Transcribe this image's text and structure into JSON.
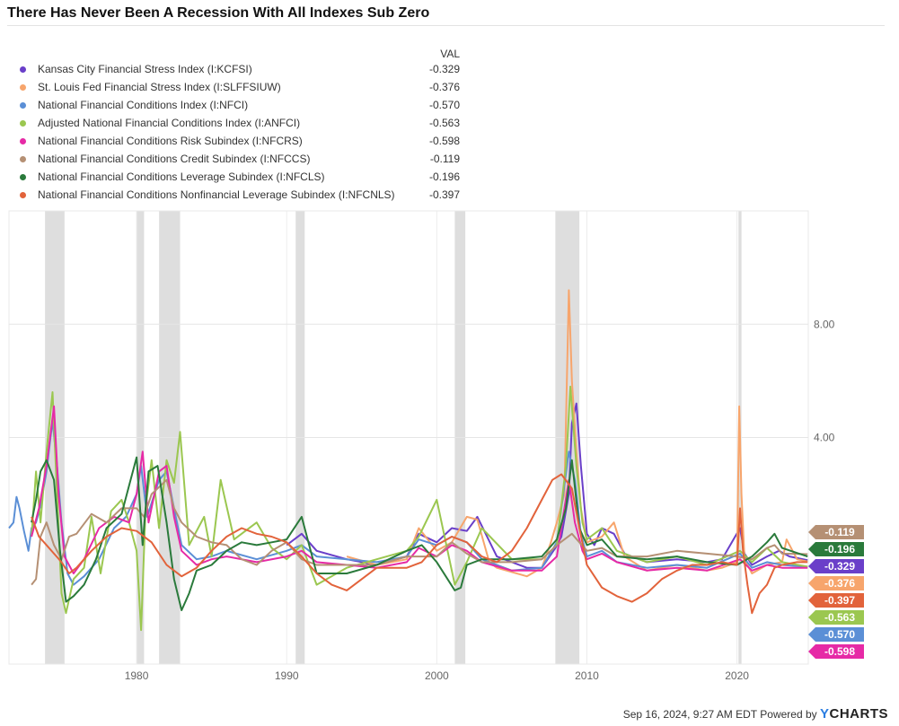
{
  "title": "There Has Never Been A Recession With All Indexes Sub Zero",
  "legend_header": "VAL",
  "footer": {
    "timestamp": "Sep 16, 2024, 9:27 AM EDT",
    "powered_by": "Powered by",
    "brand_y": "Y",
    "brand_rest": "CHARTS"
  },
  "chart_data": {
    "type": "line",
    "title": "There Has Never Been A Recession With All Indexes Sub Zero",
    "xlabel": "",
    "ylabel": "",
    "xlim": [
      1971.5,
      2024.75
    ],
    "ylim": [
      -4.0,
      12.0
    ],
    "x_ticks": [
      1980,
      1990,
      2000,
      2010,
      2020
    ],
    "x_tick_labels": [
      "1980",
      "1990",
      "2000",
      "2010",
      "2020"
    ],
    "y_ticks": [
      4,
      8
    ],
    "y_tick_labels": [
      "4.00",
      "8.00"
    ],
    "grid": true,
    "legend_position": "top-left",
    "recessions": [
      [
        1973.9,
        1975.2
      ],
      [
        1980.0,
        1980.5
      ],
      [
        1981.5,
        1982.9
      ],
      [
        1990.6,
        1991.2
      ],
      [
        2001.2,
        2001.9
      ],
      [
        2007.9,
        2009.5
      ],
      [
        2020.1,
        2020.3
      ]
    ],
    "series": [
      {
        "name": "Kansas City Financial Stress Index (I:KCFSI)",
        "value_label": "-0.329",
        "last": -0.329,
        "color": "#6a3fc9",
        "x": [
          1990.0,
          1991.0,
          1992.0,
          1994.0,
          1996.0,
          1998.0,
          1998.8,
          2000.0,
          2001.0,
          2002.0,
          2002.7,
          2004.0,
          2006.0,
          2007.0,
          2007.9,
          2008.3,
          2008.8,
          2009.0,
          2009.3,
          2009.6,
          2010.0,
          2010.5,
          2011.0,
          2011.8,
          2012.5,
          2014.0,
          2016.0,
          2018.0,
          2019.0,
          2020.2,
          2020.5,
          2021.0,
          2022.0,
          2022.8,
          2023.5,
          2024.7
        ],
        "y": [
          0.2,
          0.6,
          0.0,
          -0.3,
          -0.5,
          -0.2,
          0.6,
          0.3,
          0.8,
          0.7,
          1.2,
          -0.2,
          -0.6,
          -0.6,
          0.1,
          0.5,
          2.0,
          4.5,
          5.2,
          3.0,
          0.6,
          0.2,
          0.8,
          0.6,
          -0.1,
          -0.4,
          -0.3,
          -0.4,
          -0.3,
          0.8,
          -0.1,
          -0.5,
          -0.2,
          0.0,
          -0.2,
          -0.33
        ]
      },
      {
        "name": "St. Louis Fed Financial Stress Index (I:SLFFSIUW)",
        "value_label": "-0.376",
        "last": -0.376,
        "color": "#f7a56c",
        "x": [
          1994.0,
          1996.0,
          1998.0,
          1998.8,
          2000.0,
          2001.0,
          2002.0,
          2002.7,
          2003.5,
          2004.0,
          2006.0,
          2007.0,
          2007.6,
          2008.0,
          2008.5,
          2008.8,
          2009.0,
          2009.3,
          2009.6,
          2010.0,
          2011.0,
          2011.8,
          2012.5,
          2014.0,
          2016.0,
          2018.0,
          2019.0,
          2020.0,
          2020.15,
          2020.3,
          2020.5,
          2021.0,
          2022.0,
          2023.0,
          2023.3,
          2024.0,
          2024.7
        ],
        "y": [
          -0.2,
          -0.5,
          -0.3,
          0.8,
          0.0,
          0.3,
          1.2,
          1.1,
          -0.4,
          -0.6,
          -0.9,
          -0.6,
          0.3,
          1.0,
          2.0,
          9.2,
          6.0,
          3.5,
          1.5,
          0.3,
          0.5,
          1.0,
          -0.2,
          -0.7,
          -0.5,
          -0.7,
          -0.6,
          -0.4,
          5.1,
          2.0,
          -0.3,
          -0.8,
          -0.5,
          -0.4,
          0.4,
          -0.3,
          -0.38
        ]
      },
      {
        "name": "National Financial Conditions Index (I:NFCI)",
        "value_label": "-0.570",
        "last": -0.57,
        "color": "#5b8fd6",
        "x": [
          1971.5,
          1971.8,
          1972.0,
          1972.2,
          1972.5,
          1972.8,
          1973.0,
          1973.3,
          1973.6,
          1974.0,
          1974.4,
          1974.7,
          1975.0,
          1975.4,
          1975.8,
          1976.5,
          1977.5,
          1978.5,
          1979.3,
          1980.0,
          1980.3,
          1980.7,
          1981.5,
          1982.0,
          1982.5,
          1983.0,
          1984.0,
          1985.0,
          1986.0,
          1988.0,
          1990.0,
          1991.0,
          1992.0,
          1994.0,
          1996.0,
          1998.0,
          1998.8,
          2000.0,
          2001.0,
          2002.0,
          2003.0,
          2005.0,
          2007.0,
          2008.0,
          2008.8,
          2009.2,
          2009.6,
          2010.0,
          2011.0,
          2012.0,
          2014.0,
          2016.0,
          2018.0,
          2020.2,
          2021.0,
          2022.0,
          2023.0,
          2024.7
        ],
        "y": [
          0.8,
          1.0,
          1.9,
          1.5,
          0.7,
          0.0,
          0.8,
          1.0,
          1.6,
          2.8,
          4.6,
          3.0,
          1.0,
          -0.8,
          -1.2,
          -0.9,
          -0.3,
          0.8,
          1.2,
          2.0,
          3.0,
          1.2,
          2.5,
          2.8,
          1.5,
          0.2,
          -0.3,
          -0.2,
          0.0,
          -0.3,
          0.0,
          0.2,
          -0.2,
          -0.3,
          -0.4,
          -0.2,
          0.4,
          0.2,
          0.5,
          0.3,
          -0.3,
          -0.7,
          -0.6,
          0.3,
          3.5,
          2.5,
          0.6,
          -0.2,
          0.0,
          -0.4,
          -0.6,
          -0.5,
          -0.6,
          -0.1,
          -0.6,
          -0.4,
          -0.5,
          -0.57
        ]
      },
      {
        "name": "Adjusted National Financial Conditions Index (I:ANFCI)",
        "value_label": "-0.563",
        "last": -0.563,
        "color": "#9bc750",
        "x": [
          1973.0,
          1973.3,
          1973.6,
          1974.0,
          1974.4,
          1974.7,
          1975.0,
          1975.3,
          1975.8,
          1976.5,
          1977.0,
          1977.6,
          1978.3,
          1979.0,
          1979.5,
          1980.0,
          1980.3,
          1980.6,
          1981.0,
          1981.5,
          1982.0,
          1982.5,
          1982.9,
          1983.5,
          1984.5,
          1985.0,
          1985.6,
          1986.5,
          1988.0,
          1989.0,
          1990.0,
          1991.0,
          1992.0,
          1994.0,
          1996.0,
          1998.0,
          1998.8,
          2000.0,
          2001.2,
          2002.0,
          2003.0,
          2005.0,
          2007.0,
          2008.0,
          2008.6,
          2008.9,
          2009.3,
          2009.7,
          2010.0,
          2011.0,
          2012.0,
          2014.0,
          2016.0,
          2018.0,
          2020.2,
          2021.0,
          2022.0,
          2023.0,
          2024.7
        ],
        "y": [
          0.5,
          2.8,
          1.0,
          3.5,
          5.6,
          2.0,
          -1.5,
          -2.2,
          -1.0,
          -0.6,
          1.2,
          -0.8,
          1.4,
          1.8,
          1.0,
          0.0,
          -2.8,
          1.5,
          3.2,
          0.8,
          3.2,
          2.4,
          4.2,
          0.2,
          1.2,
          -0.2,
          2.5,
          0.4,
          1.0,
          0.1,
          -0.3,
          0.2,
          -1.2,
          -0.6,
          -0.3,
          0.0,
          0.5,
          1.8,
          -1.2,
          -0.4,
          0.8,
          -0.3,
          -0.3,
          0.2,
          3.0,
          5.8,
          3.0,
          1.0,
          0.4,
          0.8,
          0.0,
          -0.4,
          -0.2,
          -0.5,
          0.0,
          -0.4,
          0.1,
          -0.4,
          -0.56
        ]
      },
      {
        "name": "National Financial Conditions Risk Subindex (I:NFCRS)",
        "value_label": "-0.598",
        "last": -0.598,
        "color": "#e62aa6",
        "x": [
          1973.0,
          1973.5,
          1974.0,
          1974.5,
          1974.8,
          1975.2,
          1975.8,
          1976.5,
          1977.5,
          1978.5,
          1979.5,
          1980.0,
          1980.4,
          1980.8,
          1981.5,
          1982.0,
          1982.5,
          1983.0,
          1984.0,
          1985.0,
          1986.0,
          1988.0,
          1990.0,
          1991.0,
          1992.0,
          1994.0,
          1996.0,
          1998.0,
          1998.8,
          2000.0,
          2001.0,
          2002.0,
          2003.0,
          2005.0,
          2007.0,
          2008.0,
          2008.8,
          2009.2,
          2009.7,
          2010.0,
          2011.0,
          2012.0,
          2014.0,
          2016.0,
          2018.0,
          2020.2,
          2021.0,
          2022.0,
          2023.0,
          2024.7
        ],
        "y": [
          0.5,
          1.5,
          3.0,
          5.1,
          2.0,
          -0.2,
          -0.8,
          -0.3,
          0.8,
          1.2,
          1.0,
          2.0,
          3.5,
          1.0,
          2.8,
          3.0,
          1.2,
          0.0,
          -0.5,
          -0.3,
          -0.2,
          -0.4,
          -0.2,
          0.0,
          -0.4,
          -0.5,
          -0.6,
          -0.4,
          0.1,
          -0.2,
          0.2,
          0.0,
          -0.4,
          -0.7,
          -0.7,
          -0.2,
          2.5,
          1.0,
          0.0,
          -0.3,
          -0.1,
          -0.4,
          -0.7,
          -0.6,
          -0.7,
          -0.3,
          -0.7,
          -0.5,
          -0.6,
          -0.6
        ]
      },
      {
        "name": "National Financial Conditions Credit Subindex (I:NFCCS)",
        "value_label": "-0.119",
        "last": -0.119,
        "color": "#b59074",
        "x": [
          1973.0,
          1973.3,
          1973.6,
          1974.0,
          1974.5,
          1975.0,
          1975.5,
          1976.0,
          1977.0,
          1978.0,
          1979.0,
          1980.0,
          1980.5,
          1981.0,
          1982.0,
          1982.5,
          1983.0,
          1984.0,
          1985.0,
          1986.0,
          1987.0,
          1988.0,
          1989.0,
          1990.0,
          1991.0,
          1992.0,
          1994.0,
          1996.0,
          1998.0,
          2000.0,
          2001.0,
          2002.0,
          2003.0,
          2005.0,
          2007.0,
          2008.0,
          2009.0,
          2009.5,
          2010.0,
          2011.0,
          2012.0,
          2014.0,
          2016.0,
          2018.0,
          2020.0,
          2021.0,
          2022.0,
          2022.5,
          2023.0,
          2024.7
        ],
        "y": [
          -1.2,
          -1.0,
          0.5,
          1.0,
          0.2,
          -0.3,
          0.5,
          0.6,
          1.3,
          1.0,
          1.5,
          1.5,
          1.2,
          2.0,
          2.5,
          1.5,
          1.0,
          0.5,
          0.3,
          0.2,
          -0.3,
          -0.5,
          0.0,
          0.3,
          -0.3,
          -0.5,
          -0.5,
          -0.5,
          -0.2,
          -0.2,
          0.3,
          -0.1,
          -0.4,
          -0.4,
          -0.3,
          0.2,
          0.6,
          0.3,
          0.0,
          0.1,
          -0.2,
          -0.2,
          0.0,
          -0.1,
          -0.2,
          -0.3,
          0.1,
          0.2,
          -0.1,
          -0.12
        ]
      },
      {
        "name": "National Financial Conditions Leverage Subindex (I:NFCLS)",
        "value_label": "-0.196",
        "last": -0.196,
        "color": "#2a7a3b",
        "x": [
          1973.0,
          1973.3,
          1973.6,
          1974.0,
          1974.5,
          1974.9,
          1975.3,
          1975.8,
          1976.5,
          1977.3,
          1978.0,
          1979.0,
          1979.5,
          1980.0,
          1980.4,
          1980.8,
          1981.4,
          1982.0,
          1982.5,
          1983.0,
          1983.5,
          1984.0,
          1985.0,
          1986.0,
          1987.0,
          1988.0,
          1989.0,
          1990.0,
          1991.0,
          1992.0,
          1994.0,
          1996.0,
          1998.0,
          1999.0,
          2000.0,
          2001.2,
          2001.6,
          2002.0,
          2003.0,
          2005.0,
          2007.0,
          2008.0,
          2008.6,
          2009.0,
          2009.5,
          2010.0,
          2011.0,
          2012.0,
          2014.0,
          2016.0,
          2018.0,
          2020.0,
          2021.0,
          2022.0,
          2022.5,
          2023.0,
          2024.7
        ],
        "y": [
          1.0,
          1.8,
          2.8,
          3.2,
          2.5,
          0.0,
          -1.8,
          -1.6,
          -1.2,
          -0.3,
          0.8,
          1.3,
          2.3,
          3.3,
          0.2,
          2.8,
          3.0,
          1.0,
          -1.0,
          -2.1,
          -1.5,
          -0.7,
          -0.5,
          0.0,
          0.3,
          0.2,
          0.3,
          0.4,
          1.2,
          -0.8,
          -0.8,
          -0.5,
          0.0,
          0.2,
          -0.4,
          -1.4,
          -1.3,
          -0.5,
          -0.3,
          -0.3,
          -0.2,
          0.4,
          1.5,
          3.2,
          0.8,
          0.2,
          0.4,
          -0.2,
          -0.3,
          -0.2,
          -0.4,
          -0.5,
          -0.2,
          0.3,
          0.6,
          0.1,
          -0.2
        ]
      },
      {
        "name": "National Financial Conditions Nonfinancial Leverage Subindex (I:NFCNLS)",
        "value_label": "-0.397",
        "last": -0.397,
        "color": "#e2633b",
        "x": [
          1973.0,
          1973.5,
          1974.0,
          1974.5,
          1975.0,
          1975.5,
          1976.0,
          1977.0,
          1978.0,
          1979.0,
          1980.0,
          1981.0,
          1982.0,
          1983.0,
          1984.0,
          1985.0,
          1986.0,
          1987.0,
          1988.0,
          1989.0,
          1990.0,
          1991.0,
          1992.0,
          1993.0,
          1994.0,
          1996.0,
          1998.0,
          1999.0,
          2000.0,
          2001.0,
          2002.0,
          2003.0,
          2004.0,
          2005.0,
          2006.0,
          2007.0,
          2007.7,
          2008.3,
          2009.0,
          2009.5,
          2010.0,
          2011.0,
          2012.0,
          2013.0,
          2014.0,
          2015.0,
          2016.0,
          2017.0,
          2018.0,
          2019.0,
          2020.0,
          2020.2,
          2020.4,
          2020.7,
          2021.0,
          2021.5,
          2022.0,
          2022.5,
          2023.0,
          2024.0,
          2024.7
        ],
        "y": [
          1.2,
          0.5,
          0.2,
          -0.1,
          -0.4,
          -0.8,
          -0.6,
          0.0,
          0.5,
          0.8,
          0.7,
          0.3,
          -0.5,
          -0.9,
          -0.6,
          0.0,
          0.5,
          0.8,
          0.6,
          0.5,
          0.3,
          -0.2,
          -0.8,
          -1.2,
          -1.4,
          -0.6,
          -0.6,
          -0.4,
          0.2,
          0.5,
          0.3,
          -0.2,
          -0.4,
          0.0,
          0.8,
          1.8,
          2.5,
          2.7,
          2.2,
          0.8,
          -0.5,
          -1.3,
          -1.6,
          -1.8,
          -1.5,
          -1.0,
          -0.7,
          -0.5,
          -0.5,
          -0.4,
          -0.5,
          1.5,
          0.0,
          -1.2,
          -2.2,
          -1.5,
          -1.2,
          -0.6,
          -0.5,
          -0.4,
          -0.4
        ]
      }
    ],
    "value_tags": [
      {
        "label": "-0.119",
        "color": "#b59074"
      },
      {
        "label": "-0.196",
        "color": "#2a7a3b"
      },
      {
        "label": "-0.329",
        "color": "#6a3fc9"
      },
      {
        "label": "-0.376",
        "color": "#f7a56c"
      },
      {
        "label": "-0.397",
        "color": "#e2633b"
      },
      {
        "label": "-0.563",
        "color": "#9bc750"
      },
      {
        "label": "-0.570",
        "color": "#5b8fd6"
      },
      {
        "label": "-0.598",
        "color": "#e62aa6"
      }
    ]
  }
}
